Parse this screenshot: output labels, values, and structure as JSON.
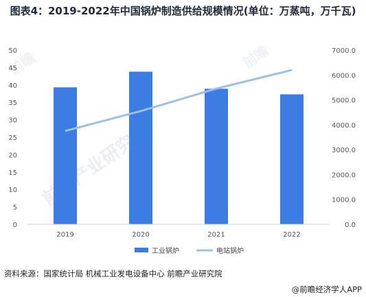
{
  "title": "图表4：2019-2022年中国锅炉制造供给规模情况(单位：万蒸吨，万千瓦)",
  "source": "资料来源：国家统计局 机械工业发电设备中心 前瞻产业研究院",
  "brand": "@前瞻经济学人APP",
  "watermark": {
    "main": "前瞻产业研究院",
    "small": "前瞻"
  },
  "chart_data": {
    "type": "bar",
    "title": "图表4：2019-2022年中国锅炉制造供给规模情况(单位：万蒸吨，万千瓦)",
    "categories": [
      "2019",
      "2020",
      "2021",
      "2022"
    ],
    "series": [
      {
        "name": "工业锅炉",
        "kind": "bar",
        "axis": "left",
        "color": "#3b7de3",
        "values": [
          39.3,
          43.8,
          38.9,
          37.3
        ]
      },
      {
        "name": "电站锅炉",
        "kind": "line",
        "axis": "right",
        "color": "#9dbfe9",
        "values": [
          3750,
          4550,
          5450,
          6200
        ]
      }
    ],
    "y_left": {
      "min": 0,
      "max": 50,
      "step": 5,
      "tick_labels": [
        "0",
        "5",
        "10",
        "15",
        "20",
        "25",
        "30",
        "35",
        "40",
        "45",
        "50"
      ]
    },
    "y_right": {
      "min": 0,
      "max": 7000,
      "step": 1000,
      "tick_labels": [
        "0.0",
        "1000.0",
        "2000.0",
        "3000.0",
        "4000.0",
        "5000.0",
        "6000.0",
        "7000.0"
      ]
    },
    "grid": false,
    "legend": "bottom-center"
  }
}
